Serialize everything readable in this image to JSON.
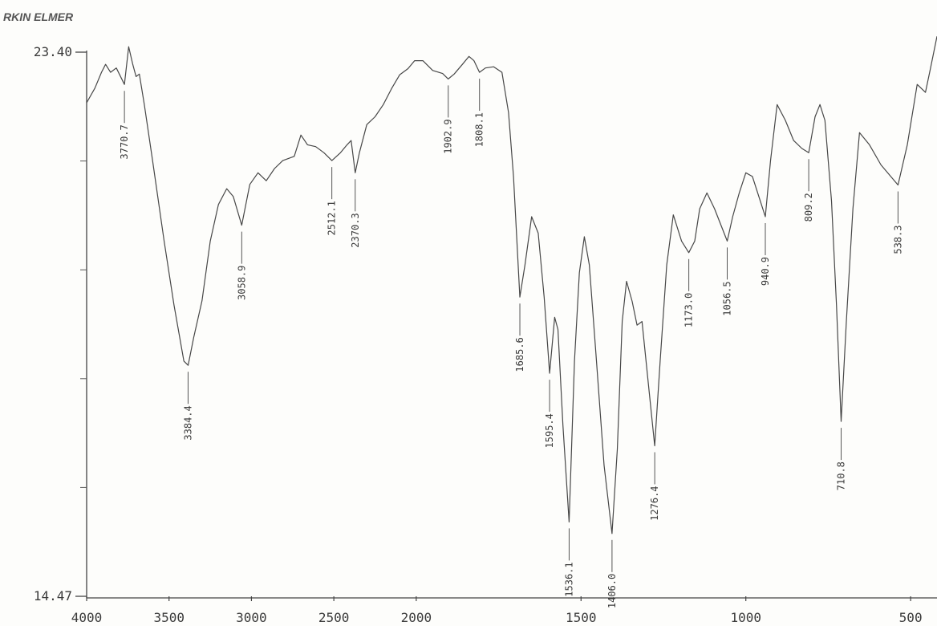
{
  "chart_data": {
    "type": "line",
    "header": "RKIN ELMER",
    "xlim": [
      4000,
      420
    ],
    "x_scale_break": 2000,
    "ylim": [
      14.47,
      23.4
    ],
    "xticks": [
      4000,
      3500,
      3000,
      2500,
      2000,
      1500,
      1000,
      500
    ],
    "yticks": [
      14.47,
      {
        "value": 23.4,
        "label": "23.40"
      }
    ],
    "y_minor_ticks": [
      16.256,
      18.042,
      19.828,
      21.614
    ],
    "color": "#474747",
    "x": [
      4000,
      3950,
      3910,
      3885,
      3855,
      3820,
      3770.7,
      3745,
      3720,
      3700,
      3680,
      3650,
      3600,
      3530,
      3470,
      3410,
      3384.4,
      3350,
      3300,
      3250,
      3200,
      3150,
      3110,
      3058.9,
      3010,
      2960,
      2910,
      2860,
      2810,
      2740,
      2700,
      2660,
      2610,
      2560,
      2512.1,
      2460,
      2420,
      2395,
      2370.3,
      2345,
      2300,
      2250,
      2200,
      2150,
      2100,
      2050,
      2010,
      1980,
      1950,
      1920,
      1902.9,
      1885,
      1860,
      1840,
      1825,
      1808.1,
      1790,
      1765,
      1740,
      1720,
      1705,
      1685.6,
      1670,
      1650,
      1630,
      1612,
      1595.4,
      1580,
      1570,
      1555,
      1536.1,
      1520,
      1505,
      1490,
      1475,
      1455,
      1430,
      1406.0,
      1390,
      1375,
      1362,
      1345,
      1330,
      1315,
      1300,
      1276.4,
      1260,
      1240,
      1220,
      1195,
      1173.0,
      1155,
      1140,
      1118,
      1095,
      1056.5,
      1040,
      1020,
      1000,
      980,
      940.9,
      925,
      905,
      880,
      855,
      830,
      809.2,
      790,
      775,
      760,
      740,
      725,
      710.8,
      695,
      675,
      655,
      625,
      590,
      538.3,
      510,
      480,
      455,
      440,
      420
    ],
    "values": [
      22.57,
      22.81,
      23.07,
      23.2,
      23.07,
      23.14,
      22.87,
      23.49,
      23.2,
      23.0,
      23.04,
      22.54,
      21.62,
      20.3,
      19.25,
      18.33,
      18.26,
      18.72,
      19.32,
      20.3,
      20.9,
      21.16,
      21.03,
      20.56,
      21.23,
      21.42,
      21.29,
      21.49,
      21.62,
      21.69,
      22.04,
      21.88,
      21.85,
      21.75,
      21.62,
      21.75,
      21.88,
      21.95,
      21.42,
      21.75,
      22.21,
      22.34,
      22.54,
      22.8,
      23.03,
      23.13,
      23.26,
      23.26,
      23.1,
      23.05,
      22.96,
      23.04,
      23.2,
      23.33,
      23.26,
      23.07,
      23.14,
      23.16,
      23.07,
      22.41,
      21.36,
      19.38,
      19.91,
      20.7,
      20.43,
      19.38,
      18.13,
      19.05,
      18.85,
      17.28,
      15.69,
      18.33,
      19.78,
      20.37,
      19.91,
      18.46,
      16.62,
      15.5,
      16.88,
      18.98,
      19.64,
      19.31,
      18.92,
      18.98,
      18.19,
      16.94,
      18.33,
      19.91,
      20.73,
      20.3,
      20.11,
      20.3,
      20.83,
      21.09,
      20.83,
      20.3,
      20.7,
      21.09,
      21.42,
      21.36,
      20.7,
      21.62,
      22.54,
      22.28,
      21.95,
      21.82,
      21.75,
      22.34,
      22.54,
      22.28,
      20.96,
      19.25,
      17.34,
      18.98,
      20.83,
      22.08,
      21.88,
      21.55,
      21.22,
      21.88,
      22.87,
      22.74,
      23.13,
      23.66
    ],
    "annotations": [
      {
        "x": 3770.7,
        "label": "3770.7"
      },
      {
        "x": 3384.4,
        "label": "3384.4"
      },
      {
        "x": 3058.9,
        "label": "3058.9"
      },
      {
        "x": 2512.1,
        "label": "2512.1"
      },
      {
        "x": 2370.3,
        "label": "2370.3"
      },
      {
        "x": 1902.9,
        "label": "1902.9"
      },
      {
        "x": 1808.1,
        "label": "1808.1"
      },
      {
        "x": 1685.6,
        "label": "1685.6"
      },
      {
        "x": 1595.4,
        "label": "1595.4"
      },
      {
        "x": 1536.1,
        "label": "1536.1"
      },
      {
        "x": 1406.0,
        "label": "1406.0"
      },
      {
        "x": 1276.4,
        "label": "1276.4"
      },
      {
        "x": 1173.0,
        "label": "1173.0"
      },
      {
        "x": 1056.5,
        "label": "1056.5"
      },
      {
        "x": 940.9,
        "label": "940.9"
      },
      {
        "x": 809.2,
        "label": "809.2"
      },
      {
        "x": 710.8,
        "label": "710.8"
      },
      {
        "x": 538.3,
        "label": "538.3"
      }
    ]
  }
}
